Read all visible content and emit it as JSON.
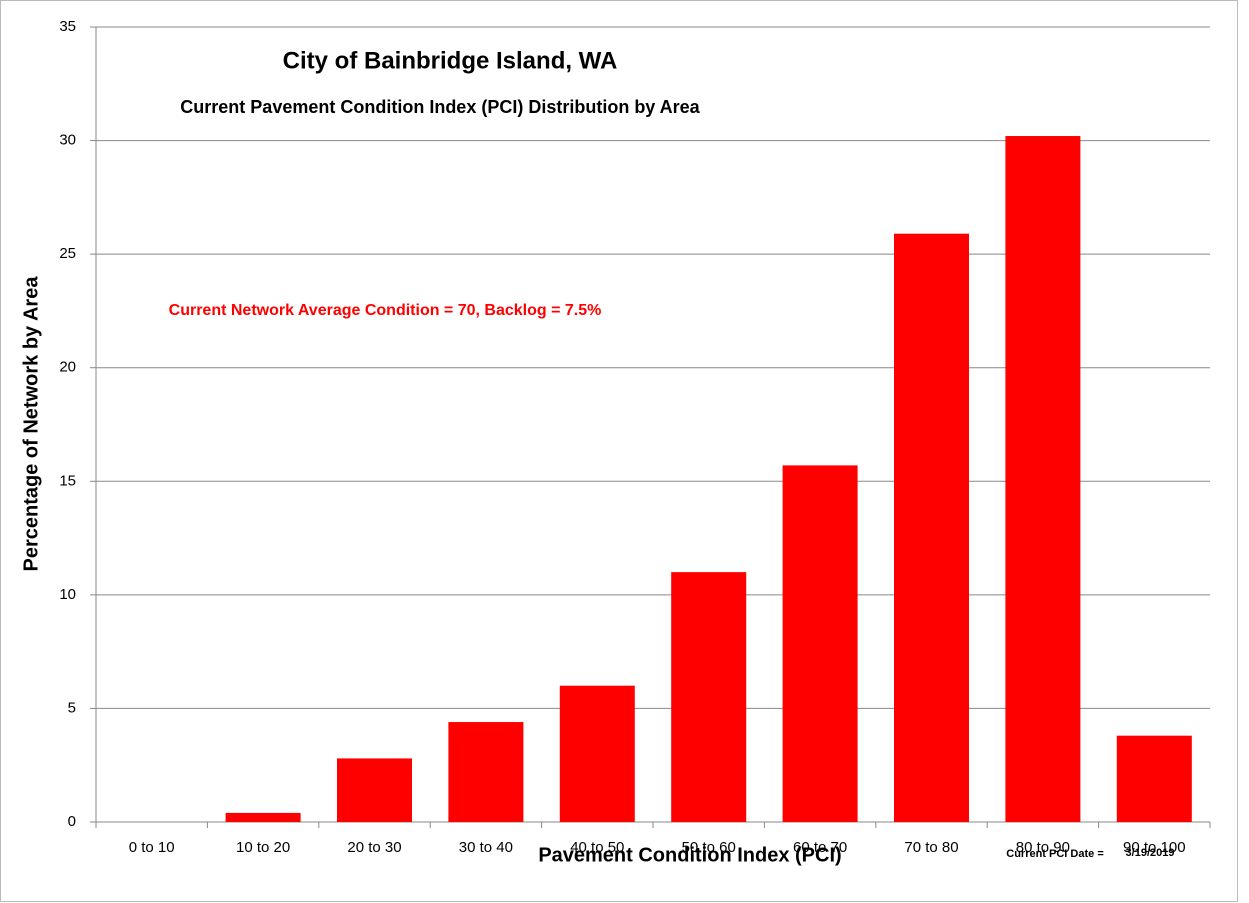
{
  "chart_data": {
    "type": "bar",
    "title": "City of Bainbridge Island, WA",
    "subtitle": "Current Pavement Condition Index (PCI) Distribution by Area",
    "annotation": "Current Network Average Condition  = 70, Backlog = 7.5%",
    "x_label": "Pavement Condition Index (PCI)",
    "y_label": "Percentage of Network by Area",
    "date_label": "Current PCI Date =",
    "date_value": "3/19/2019",
    "categories": [
      "0 to 10",
      "10 to 20",
      "20 to 30",
      "30 to 40",
      "40 to 50",
      "50 to 60",
      "60 to 70",
      "70 to 80",
      "80 to 90",
      "90 to 100"
    ],
    "values": [
      0,
      0.4,
      2.8,
      4.4,
      6.0,
      11.0,
      15.7,
      25.9,
      30.2,
      3.8
    ],
    "color": "#ff0000",
    "ylim": [
      0,
      35
    ],
    "yticks": [
      0,
      5,
      10,
      15,
      20,
      25,
      30,
      35
    ],
    "grid": true
  }
}
